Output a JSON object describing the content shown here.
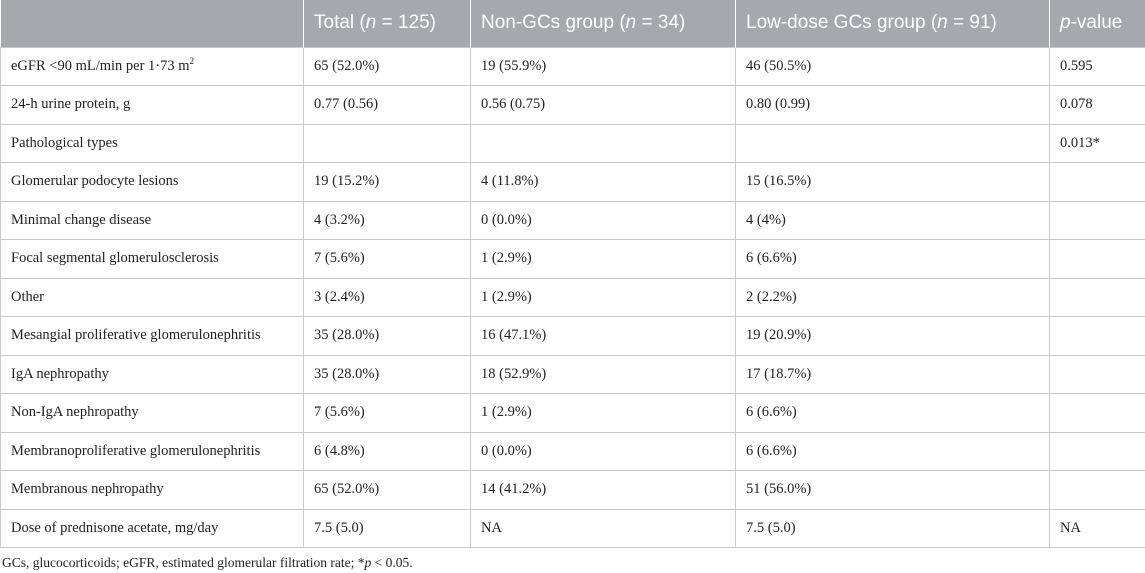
{
  "table": {
    "headers": [
      {
        "pre": "Total (",
        "var": "n",
        "post": " = 125)"
      },
      {
        "pre": "Non-GCs group (",
        "var": "n",
        "post": " = 34)"
      },
      {
        "pre": "Low-dose GCs group (",
        "var": "n",
        "post": " = 91)"
      },
      {
        "pre": "",
        "var": "p",
        "post": "-value"
      }
    ],
    "first_row": {
      "label": "eGFR <90 mL/min per 1·73 m",
      "sup": "2",
      "total": "65 (52.0%)",
      "non_gcs": "19 (55.9%)",
      "low_dose": "46 (50.5%)",
      "p": "0.595"
    },
    "rows": [
      [
        "24-h urine protein, g",
        "0.77 (0.56)",
        "0.56 (0.75)",
        "0.80 (0.99)",
        "0.078"
      ],
      [
        "Pathological types",
        "",
        "",
        "",
        "0.013*"
      ],
      [
        "Glomerular podocyte lesions",
        "19 (15.2%)",
        "4 (11.8%)",
        "15 (16.5%)",
        ""
      ],
      [
        "Minimal change disease",
        "4 (3.2%)",
        "0 (0.0%)",
        "4 (4%)",
        ""
      ],
      [
        "Focal segmental glomerulosclerosis",
        "7 (5.6%)",
        "1 (2.9%)",
        "6 (6.6%)",
        ""
      ],
      [
        "Other",
        "3 (2.4%)",
        "1 (2.9%)",
        "2 (2.2%)",
        ""
      ],
      [
        "Mesangial proliferative glomerulonephritis",
        "35 (28.0%)",
        "16 (47.1%)",
        "19 (20.9%)",
        ""
      ],
      [
        "IgA nephropathy",
        "35 (28.0%)",
        "18 (52.9%)",
        "17 (18.7%)",
        ""
      ],
      [
        "Non-IgA nephropathy",
        "7 (5.6%)",
        "1 (2.9%)",
        "6 (6.6%)",
        ""
      ],
      [
        "Membranoproliferative glomerulonephritis",
        "6 (4.8%)",
        "0 (0.0%)",
        "6 (6.6%)",
        ""
      ],
      [
        "Membranous nephropathy",
        "65 (52.0%)",
        "14 (41.2%)",
        "51 (56.0%)",
        ""
      ],
      [
        "Dose of prednisone acetate, mg/day",
        "7.5 (5.0)",
        "NA",
        "7.5 (5.0)",
        "NA"
      ]
    ]
  },
  "footnote": {
    "pre": "GCs, glucocorticoids; eGFR, estimated glomerular filtration rate; *",
    "var": "p",
    "post": " < 0.05."
  },
  "colors": {
    "header_bg": "#a7a8ab",
    "header_text": "#ffffff",
    "border": "#c9c9c9",
    "text": "#222222"
  }
}
